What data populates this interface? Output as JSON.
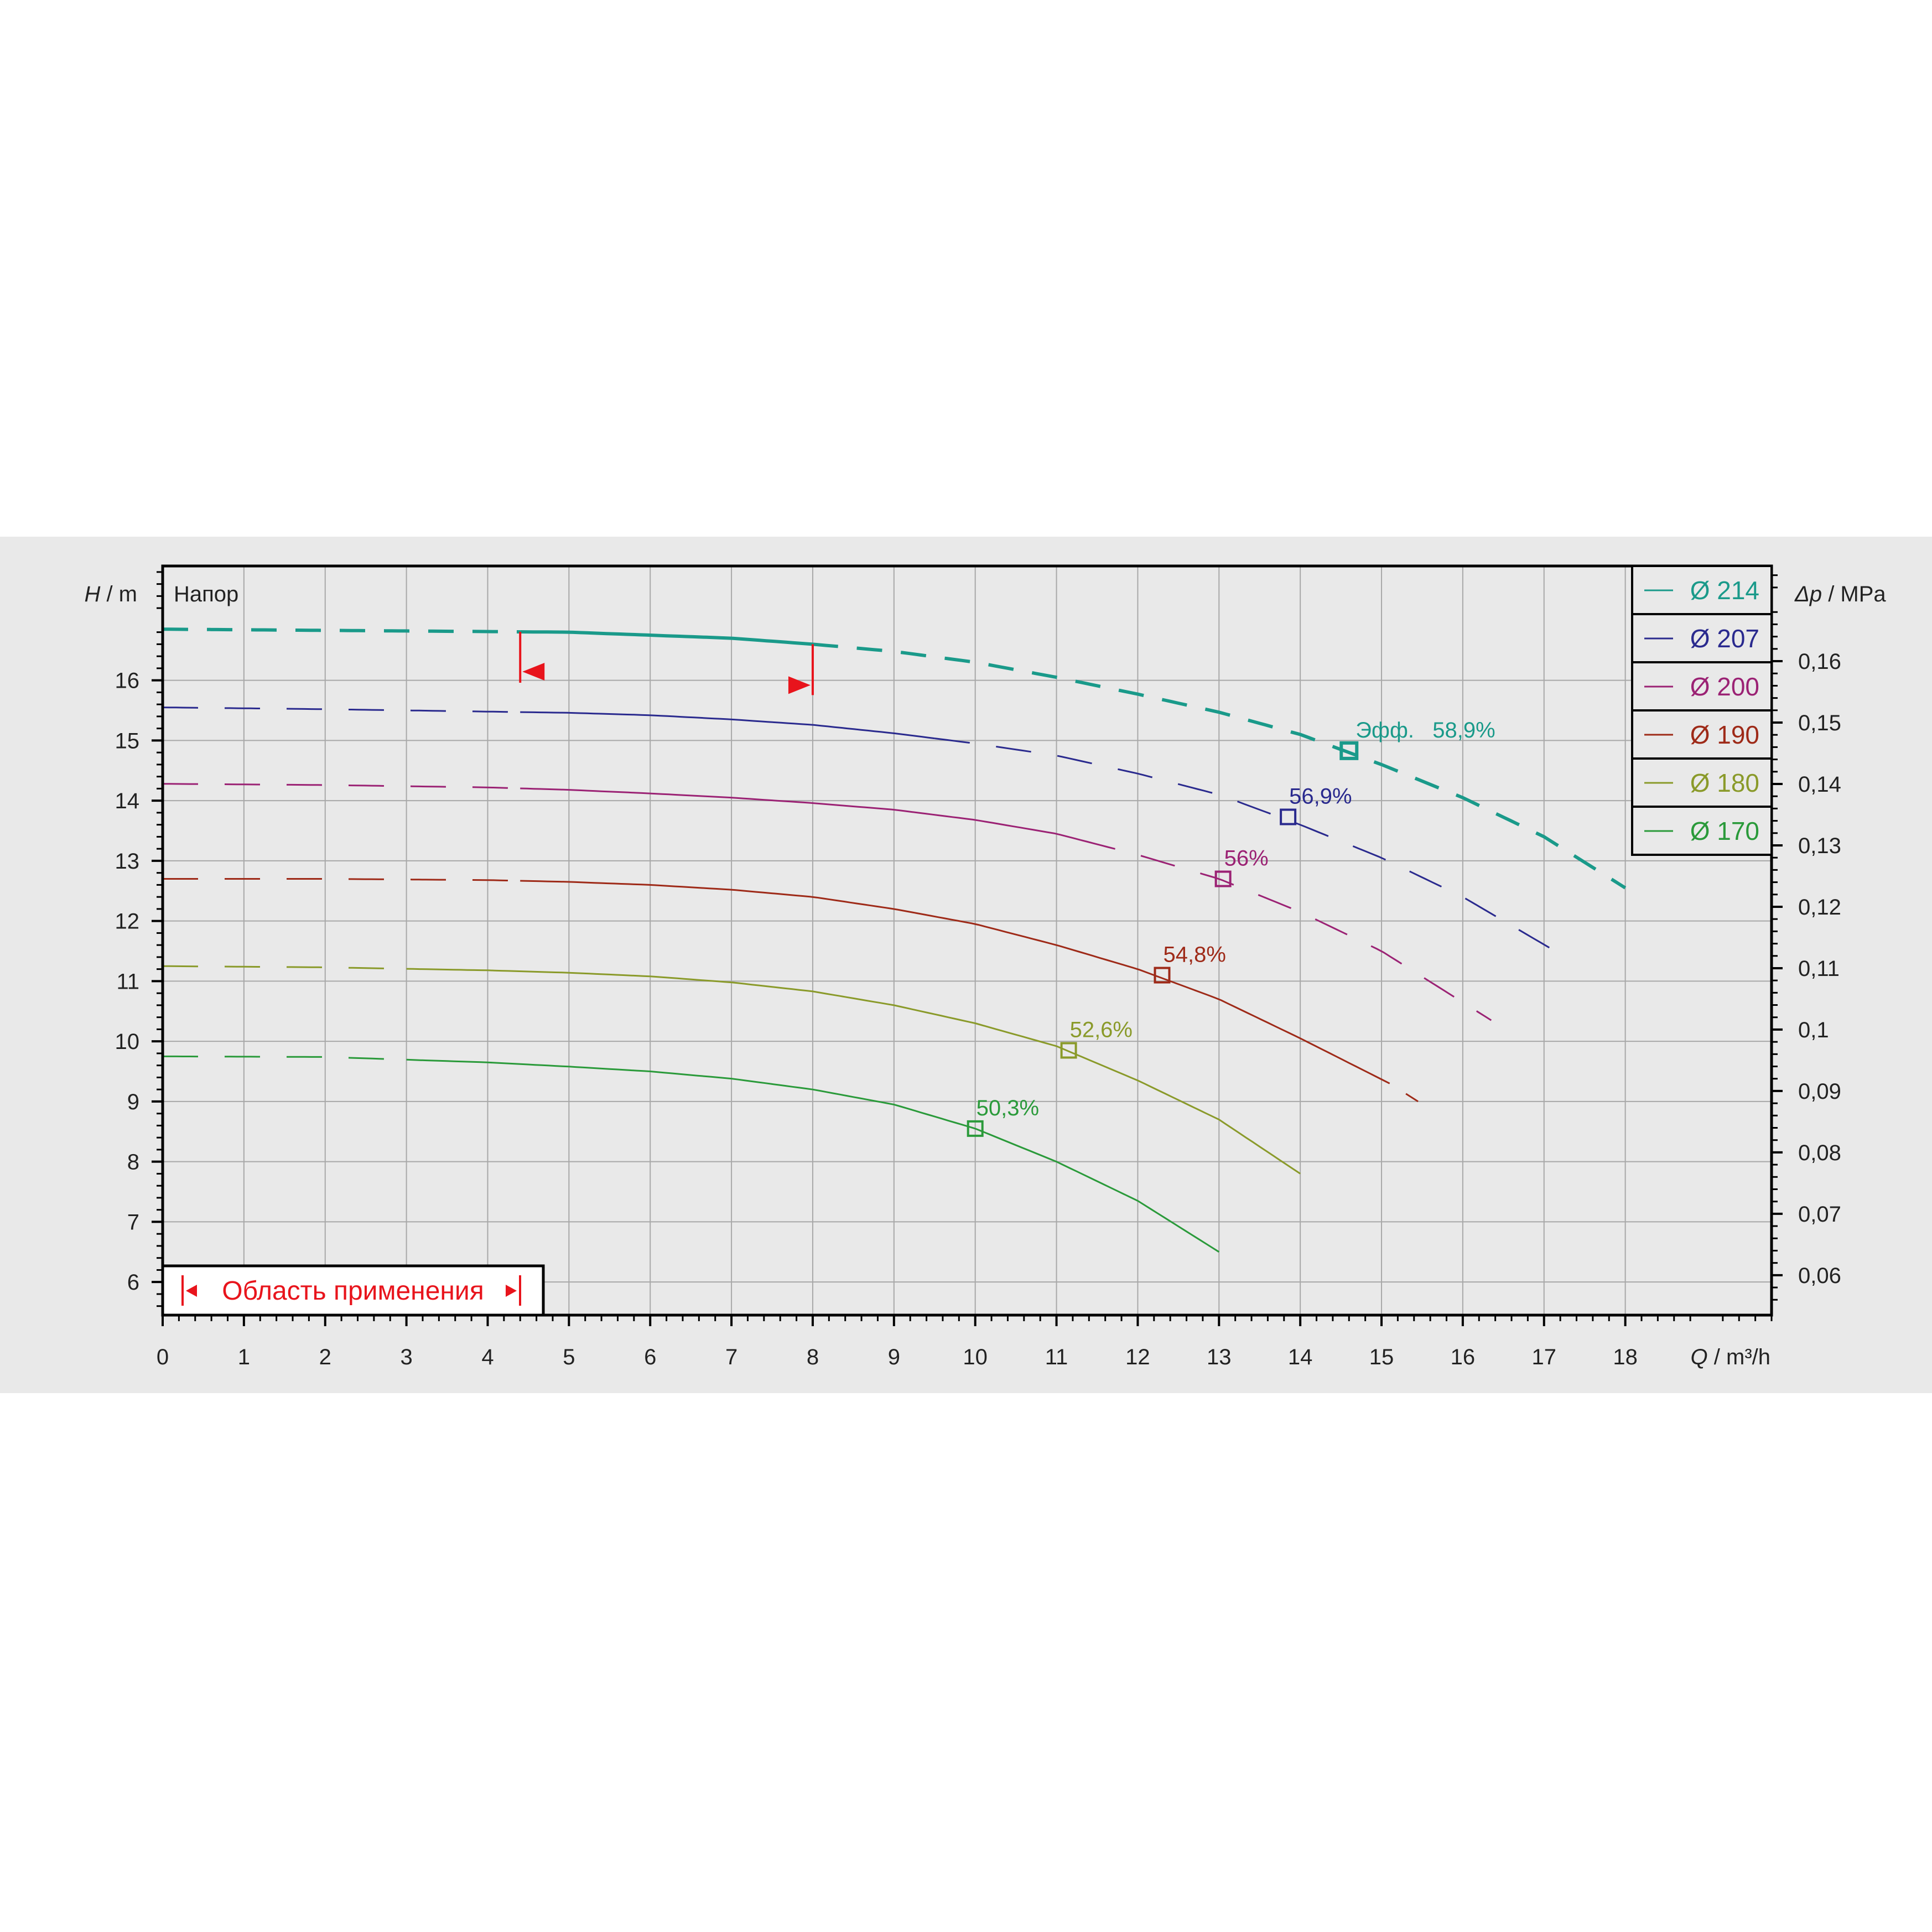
{
  "chart_data": {
    "type": "line",
    "title": "Напор",
    "xlabel": {
      "symbol": "Q",
      "unit": " / m³/h"
    },
    "ylabel": {
      "symbol": "H",
      "unit": " / m"
    },
    "y2label": {
      "symbol": "Δp",
      "unit": " / MPa"
    },
    "xlim": [
      0,
      19.8
    ],
    "ylim": [
      5.45,
      17.9
    ],
    "y2lim": [
      0.0535,
      0.1755
    ],
    "x_ticks": [
      "0",
      "1",
      "2",
      "3",
      "4",
      "5",
      "6",
      "7",
      "8",
      "9",
      "10",
      "11",
      "12",
      "13",
      "14",
      "15",
      "16",
      "17",
      "18"
    ],
    "y_ticks": [
      "6",
      "7",
      "8",
      "9",
      "10",
      "11",
      "12",
      "13",
      "14",
      "15",
      "16"
    ],
    "y2_ticks": [
      "0,06",
      "0,07",
      "0,08",
      "0,09",
      "0,1",
      "0,11",
      "0,12",
      "0,13",
      "0,14",
      "0,15",
      "0,16"
    ],
    "grid": true,
    "legend_position": "top-right",
    "application_range": {
      "label": "Область применения",
      "q_min": 4.4,
      "q_max": 8.0,
      "color": "#e8141c"
    },
    "series": [
      {
        "name": "Ø 214",
        "color": "#1a9a8a",
        "bold": true,
        "points": [
          [
            0,
            16.85
          ],
          [
            2,
            16.83
          ],
          [
            4,
            16.81
          ],
          [
            5,
            16.8
          ],
          [
            6,
            16.75
          ],
          [
            7,
            16.7
          ],
          [
            8,
            16.6
          ],
          [
            9,
            16.48
          ],
          [
            10,
            16.3
          ],
          [
            11,
            16.05
          ],
          [
            12,
            15.77
          ],
          [
            13,
            15.47
          ],
          [
            14,
            15.1
          ],
          [
            15,
            14.6
          ],
          [
            16,
            14.05
          ],
          [
            17,
            13.4
          ],
          [
            18,
            12.55
          ]
        ],
        "segments": [
          [
            0,
            4.4,
            "dash"
          ],
          [
            4.4,
            8.0,
            "solid"
          ],
          [
            8.0,
            18,
            "dash"
          ]
        ],
        "bep": {
          "q": 14.6,
          "h": 14.83,
          "label": "Эфф.   58,9%"
        }
      },
      {
        "name": "Ø 207",
        "color": "#2a2a8e",
        "points": [
          [
            0,
            15.55
          ],
          [
            2,
            15.52
          ],
          [
            4,
            15.48
          ],
          [
            5,
            15.46
          ],
          [
            6,
            15.42
          ],
          [
            7,
            15.35
          ],
          [
            8,
            15.26
          ],
          [
            9,
            15.12
          ],
          [
            10,
            14.95
          ],
          [
            11,
            14.75
          ],
          [
            12,
            14.45
          ],
          [
            13,
            14.1
          ],
          [
            14,
            13.6
          ],
          [
            15,
            13.05
          ],
          [
            16,
            12.4
          ],
          [
            17.2,
            11.45
          ]
        ],
        "segments": [
          [
            0,
            4.4,
            "dash"
          ],
          [
            4.4,
            9.5,
            "solid"
          ],
          [
            9.5,
            17.2,
            "dash"
          ]
        ],
        "bep": {
          "q": 13.85,
          "h": 13.73,
          "label": "56,9%"
        }
      },
      {
        "name": "Ø 200",
        "color": "#9b2274",
        "points": [
          [
            0,
            14.28
          ],
          [
            2,
            14.26
          ],
          [
            4,
            14.22
          ],
          [
            5,
            14.18
          ],
          [
            6,
            14.12
          ],
          [
            7,
            14.05
          ],
          [
            8,
            13.96
          ],
          [
            9,
            13.85
          ],
          [
            10,
            13.68
          ],
          [
            11,
            13.45
          ],
          [
            12,
            13.1
          ],
          [
            13,
            12.7
          ],
          [
            14,
            12.15
          ],
          [
            15,
            11.5
          ],
          [
            16.35,
            10.35
          ]
        ],
        "segments": [
          [
            0,
            4.4,
            "dash"
          ],
          [
            4.4,
            11.3,
            "solid"
          ],
          [
            11.3,
            16.35,
            "dash"
          ]
        ],
        "bep": {
          "q": 13.05,
          "h": 12.7,
          "label": "56%"
        }
      },
      {
        "name": "Ø 190",
        "color": "#9e2a18",
        "points": [
          [
            0,
            12.7
          ],
          [
            2,
            12.7
          ],
          [
            4,
            12.68
          ],
          [
            5,
            12.65
          ],
          [
            6,
            12.6
          ],
          [
            7,
            12.52
          ],
          [
            8,
            12.4
          ],
          [
            9,
            12.2
          ],
          [
            10,
            11.95
          ],
          [
            11,
            11.6
          ],
          [
            12,
            11.2
          ],
          [
            13,
            10.7
          ],
          [
            14,
            10.05
          ],
          [
            15.1,
            9.3
          ],
          [
            15.45,
            9.0
          ]
        ],
        "segments": [
          [
            0,
            4.4,
            "dash"
          ],
          [
            4.4,
            15.1,
            "solid"
          ],
          [
            15.3,
            15.45,
            "dash"
          ]
        ],
        "bep": {
          "q": 12.3,
          "h": 11.1,
          "label": "54,8%"
        }
      },
      {
        "name": "Ø 180",
        "color": "#8a9a2a",
        "points": [
          [
            0,
            11.25
          ],
          [
            2,
            11.23
          ],
          [
            4,
            11.18
          ],
          [
            5,
            11.14
          ],
          [
            6,
            11.08
          ],
          [
            7,
            10.98
          ],
          [
            8,
            10.83
          ],
          [
            9,
            10.6
          ],
          [
            10,
            10.3
          ],
          [
            11,
            9.92
          ],
          [
            12,
            9.35
          ],
          [
            13,
            8.7
          ],
          [
            14,
            7.8
          ]
        ],
        "segments": [
          [
            0,
            3.0,
            "dash"
          ],
          [
            3.0,
            14,
            "solid"
          ]
        ],
        "bep": {
          "q": 11.15,
          "h": 9.85,
          "label": "52,6%"
        }
      },
      {
        "name": "Ø 170",
        "color": "#2a9a3a",
        "points": [
          [
            0,
            9.75
          ],
          [
            2,
            9.74
          ],
          [
            4,
            9.65
          ],
          [
            5,
            9.58
          ],
          [
            6,
            9.5
          ],
          [
            7,
            9.38
          ],
          [
            8,
            9.2
          ],
          [
            9,
            8.95
          ],
          [
            10,
            8.55
          ],
          [
            11,
            8.0
          ],
          [
            12,
            7.35
          ],
          [
            13,
            6.5
          ]
        ],
        "segments": [
          [
            0,
            3.0,
            "dash"
          ],
          [
            3.0,
            13,
            "solid"
          ]
        ],
        "bep": {
          "q": 10.0,
          "h": 8.55,
          "label": "50,3%"
        }
      }
    ]
  }
}
